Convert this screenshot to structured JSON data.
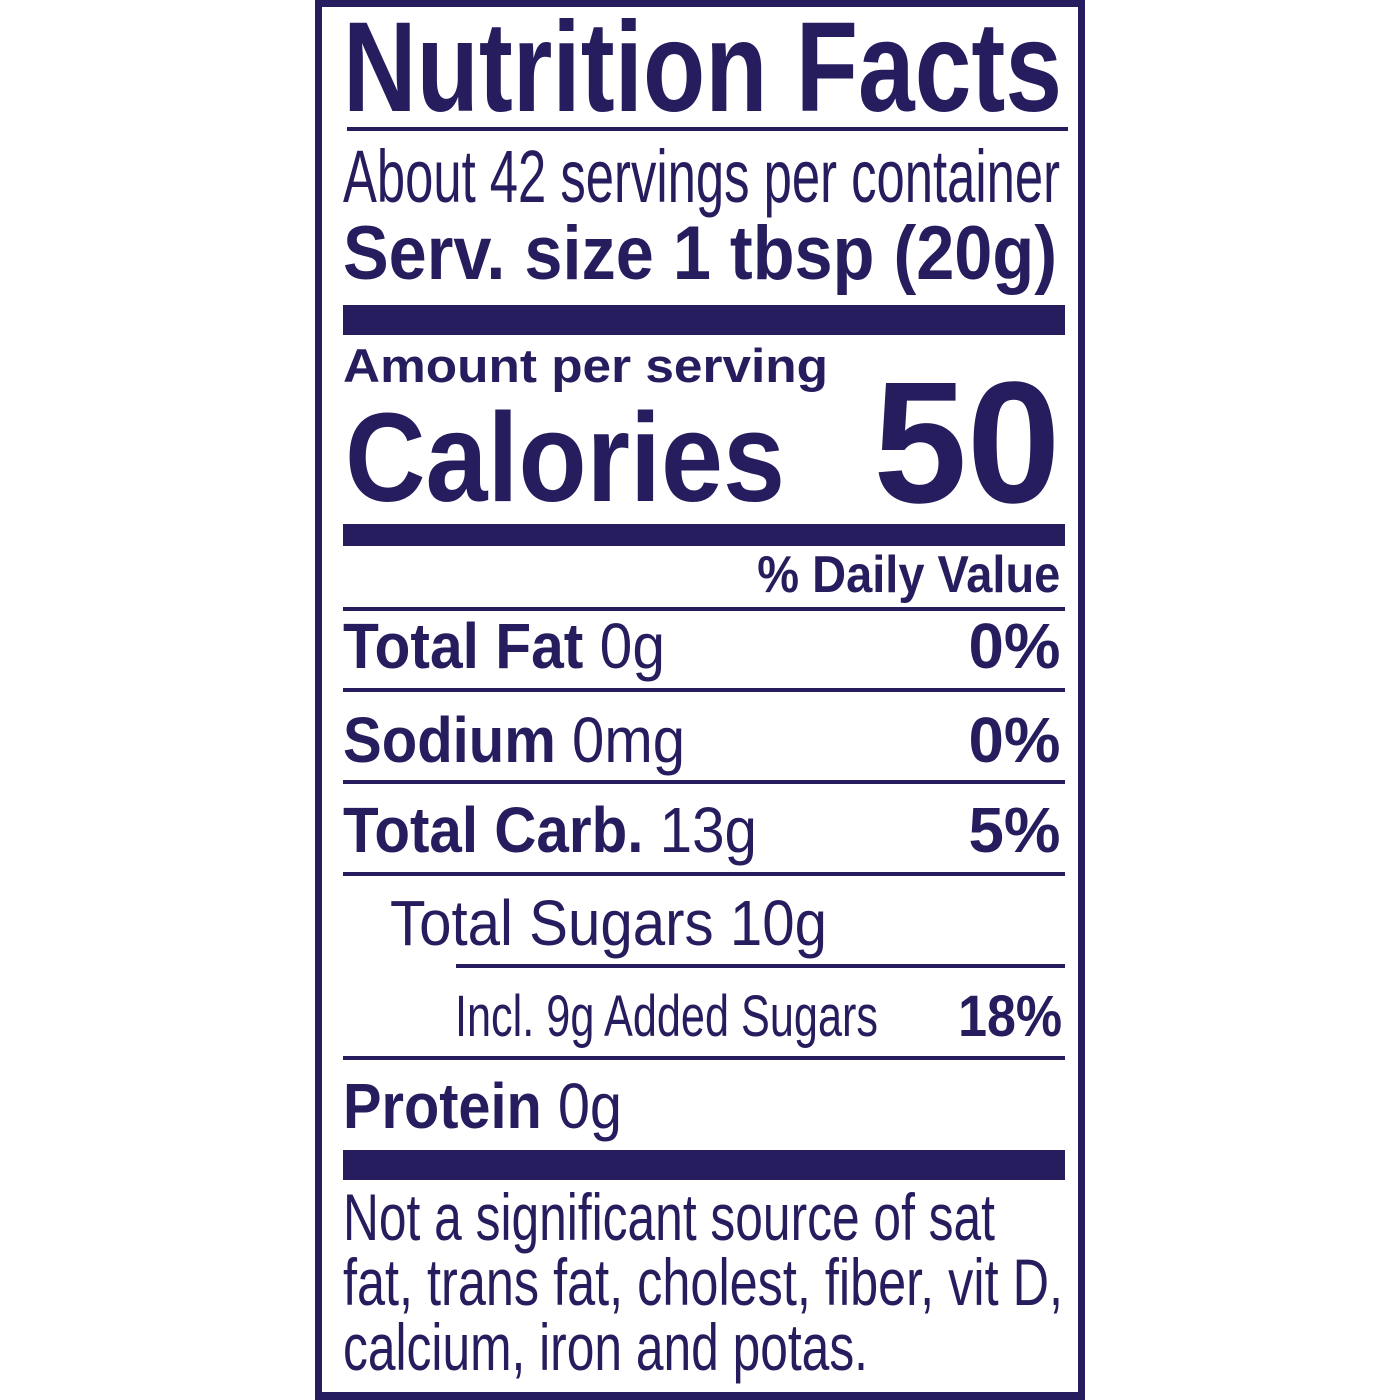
{
  "label": {
    "title": "Nutrition Facts",
    "servings": "About 42 servings per container",
    "serving_size": "Serv. size 1 tbsp (20g)",
    "amount_per_serving": "Amount per serving",
    "calories_label": "Calories",
    "calories_value": "50",
    "daily_value_header": "% Daily Value",
    "nutrients": [
      {
        "name": "Total Fat",
        "amount": "0g",
        "dv": "0%"
      },
      {
        "name": "Sodium",
        "amount": "0mg",
        "dv": "0%"
      },
      {
        "name": "Total Carb.",
        "amount": "13g",
        "dv": "5%"
      },
      {
        "name": "Total Sugars 10g"
      },
      {
        "name": "Incl. 9g Added Sugars",
        "dv": "18%"
      },
      {
        "name": "Protein",
        "amount": "0g"
      }
    ],
    "footnote": [
      "Not a significant source of sat",
      "fat, trans fat, cholest, fiber, vit D,",
      "calcium, iron and potas."
    ]
  },
  "colors": {
    "ink": "#261d5e",
    "background": "#ffffff"
  }
}
